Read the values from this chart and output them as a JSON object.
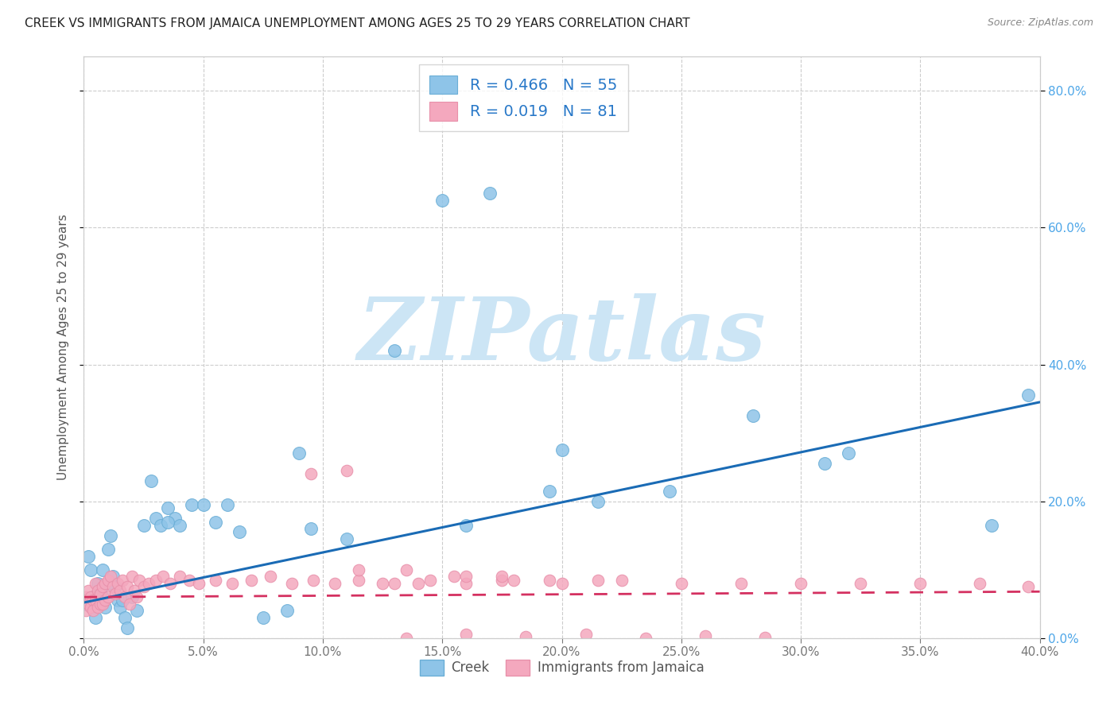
{
  "title": "CREEK VS IMMIGRANTS FROM JAMAICA UNEMPLOYMENT AMONG AGES 25 TO 29 YEARS CORRELATION CHART",
  "source": "Source: ZipAtlas.com",
  "ylabel": "Unemployment Among Ages 25 to 29 years",
  "xlim": [
    0.0,
    0.4
  ],
  "ylim": [
    0.0,
    0.85
  ],
  "yticks": [
    0.0,
    0.2,
    0.4,
    0.6,
    0.8
  ],
  "creek_color": "#8ec4e8",
  "creek_edge_color": "#6aaed6",
  "jamaica_color": "#f4a8be",
  "jamaica_edge_color": "#e890aa",
  "creek_line_color": "#1a6bb5",
  "jamaica_line_color": "#d43060",
  "creek_R": 0.466,
  "creek_N": 55,
  "jamaica_R": 0.019,
  "jamaica_N": 81,
  "creek_line_start_y": 0.052,
  "creek_line_end_y": 0.345,
  "jamaica_line_start_y": 0.06,
  "jamaica_line_end_y": 0.068,
  "watermark_text": "ZIPatlas",
  "watermark_color": "#cce5f5",
  "right_tick_color": "#4da6e8",
  "grid_color": "#cccccc",
  "background_color": "#ffffff",
  "creek_x": [
    0.001,
    0.002,
    0.003,
    0.004,
    0.005,
    0.005,
    0.006,
    0.007,
    0.007,
    0.008,
    0.008,
    0.009,
    0.01,
    0.01,
    0.011,
    0.012,
    0.013,
    0.014,
    0.015,
    0.016,
    0.017,
    0.018,
    0.02,
    0.022,
    0.025,
    0.028,
    0.03,
    0.032,
    0.035,
    0.038,
    0.04,
    0.045,
    0.05,
    0.055,
    0.06,
    0.065,
    0.075,
    0.085,
    0.095,
    0.11,
    0.13,
    0.15,
    0.17,
    0.195,
    0.215,
    0.245,
    0.2,
    0.32,
    0.38,
    0.395,
    0.035,
    0.09,
    0.16,
    0.28,
    0.31
  ],
  "creek_y": [
    0.05,
    0.12,
    0.1,
    0.06,
    0.055,
    0.03,
    0.08,
    0.07,
    0.05,
    0.1,
    0.06,
    0.045,
    0.13,
    0.08,
    0.15,
    0.09,
    0.075,
    0.055,
    0.045,
    0.055,
    0.03,
    0.015,
    0.06,
    0.04,
    0.165,
    0.23,
    0.175,
    0.165,
    0.19,
    0.175,
    0.165,
    0.195,
    0.195,
    0.17,
    0.195,
    0.155,
    0.03,
    0.04,
    0.16,
    0.145,
    0.42,
    0.64,
    0.65,
    0.215,
    0.2,
    0.215,
    0.275,
    0.27,
    0.165,
    0.355,
    0.17,
    0.27,
    0.165,
    0.325,
    0.255
  ],
  "jamaica_x": [
    0.001,
    0.001,
    0.002,
    0.002,
    0.003,
    0.003,
    0.004,
    0.004,
    0.005,
    0.005,
    0.006,
    0.006,
    0.007,
    0.007,
    0.008,
    0.008,
    0.009,
    0.009,
    0.01,
    0.01,
    0.011,
    0.012,
    0.013,
    0.014,
    0.015,
    0.016,
    0.017,
    0.018,
    0.019,
    0.02,
    0.021,
    0.022,
    0.023,
    0.025,
    0.027,
    0.03,
    0.033,
    0.036,
    0.04,
    0.044,
    0.048,
    0.055,
    0.062,
    0.07,
    0.078,
    0.087,
    0.096,
    0.105,
    0.115,
    0.13,
    0.145,
    0.16,
    0.175,
    0.095,
    0.11,
    0.125,
    0.14,
    0.16,
    0.18,
    0.2,
    0.225,
    0.25,
    0.275,
    0.3,
    0.325,
    0.35,
    0.375,
    0.395,
    0.115,
    0.135,
    0.155,
    0.175,
    0.195,
    0.215,
    0.135,
    0.16,
    0.185,
    0.21,
    0.235,
    0.26,
    0.285
  ],
  "jamaica_y": [
    0.06,
    0.04,
    0.07,
    0.05,
    0.06,
    0.045,
    0.055,
    0.04,
    0.08,
    0.055,
    0.07,
    0.045,
    0.065,
    0.05,
    0.075,
    0.05,
    0.08,
    0.055,
    0.085,
    0.06,
    0.09,
    0.075,
    0.065,
    0.08,
    0.07,
    0.085,
    0.06,
    0.075,
    0.05,
    0.09,
    0.07,
    0.06,
    0.085,
    0.075,
    0.08,
    0.085,
    0.09,
    0.08,
    0.09,
    0.085,
    0.08,
    0.085,
    0.08,
    0.085,
    0.09,
    0.08,
    0.085,
    0.08,
    0.085,
    0.08,
    0.085,
    0.08,
    0.085,
    0.24,
    0.245,
    0.08,
    0.08,
    0.09,
    0.085,
    0.08,
    0.085,
    0.08,
    0.08,
    0.08,
    0.08,
    0.08,
    0.08,
    0.075,
    0.1,
    0.1,
    0.09,
    0.09,
    0.085,
    0.085,
    0.0,
    0.005,
    0.002,
    0.005,
    0.0,
    0.003,
    0.001
  ]
}
